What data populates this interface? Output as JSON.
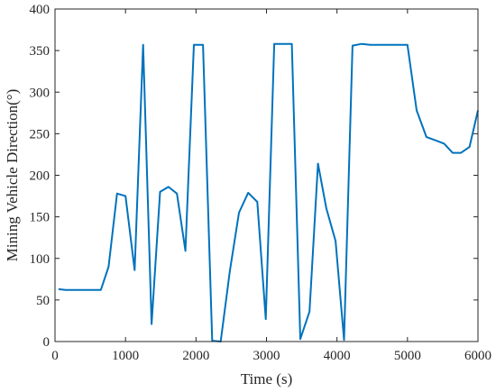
{
  "chart_data": {
    "type": "line",
    "title": "",
    "xlabel": "Time (s)",
    "ylabel": "Mining Vehicle Direction(°)",
    "xlim": [
      0,
      6000
    ],
    "ylim": [
      0,
      400
    ],
    "xticks": [
      0,
      1000,
      2000,
      3000,
      4000,
      5000,
      6000
    ],
    "yticks": [
      0,
      50,
      100,
      150,
      200,
      250,
      300,
      350,
      400
    ],
    "grid": false,
    "line_color": "#0072BD",
    "series": [
      {
        "x": [
          50,
          150,
          650,
          760,
          880,
          1000,
          1130,
          1250,
          1370,
          1490,
          1610,
          1730,
          1850,
          1970,
          2100,
          2230,
          2350,
          2480,
          2610,
          2740,
          2870,
          2990,
          3110,
          3240,
          3360,
          3480,
          3610,
          3730,
          3850,
          3980,
          4100,
          4220,
          4350,
          4470,
          4600,
          4720,
          4850,
          5000,
          5130,
          5270,
          5400,
          5520,
          5640,
          5760,
          5880,
          6000
        ],
        "y": [
          63,
          62,
          62,
          90,
          178,
          175,
          86,
          357,
          21,
          180,
          186,
          178,
          109,
          357,
          357,
          1,
          0,
          85,
          155,
          179,
          168,
          27,
          358,
          358,
          358,
          3,
          36,
          214,
          160,
          121,
          2,
          356,
          358,
          357,
          357,
          357,
          357,
          357,
          278,
          246,
          242,
          238,
          227,
          227,
          234,
          278
        ]
      }
    ]
  }
}
